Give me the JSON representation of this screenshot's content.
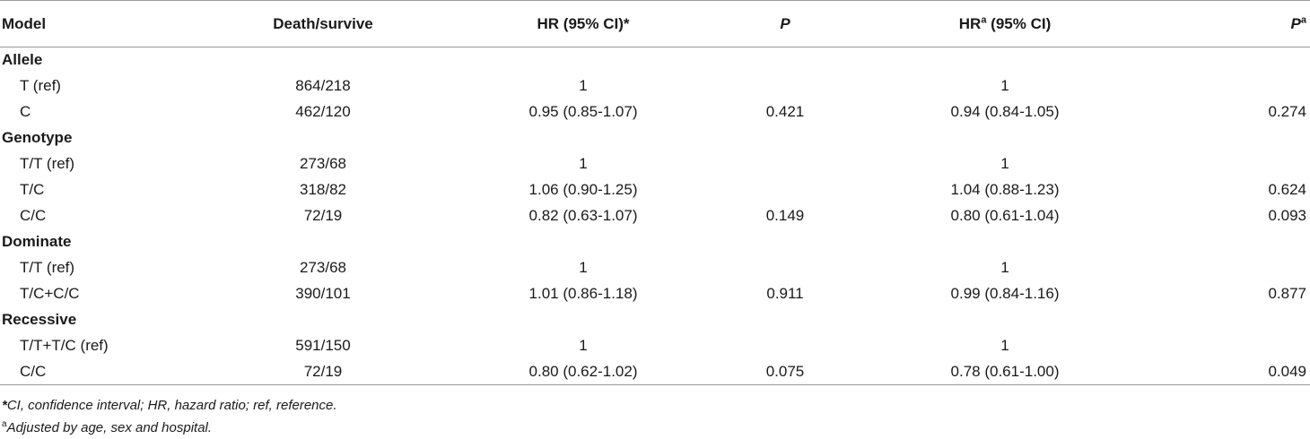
{
  "headers": {
    "model": "Model",
    "death_survive": "Death/survive",
    "hr1": "HR (95% CI)*",
    "p1": "P",
    "hr2_base": "HR",
    "hr2_sup": "a",
    "hr2_rest": " (95% CI)",
    "p2_base": "P",
    "p2_sup": "a"
  },
  "groups": [
    {
      "label": "Allele",
      "rows": [
        {
          "model": "T (ref)",
          "ds": "864/218",
          "hr1": "1",
          "p1": "",
          "hr2": "1",
          "p2": ""
        },
        {
          "model": "C",
          "ds": "462/120",
          "hr1": "0.95 (0.85-1.07)",
          "p1": "0.421",
          "hr2": "0.94 (0.84-1.05)",
          "p2": "0.274"
        }
      ]
    },
    {
      "label": "Genotype",
      "rows": [
        {
          "model": "T/T (ref)",
          "ds": "273/68",
          "hr1": "1",
          "p1": "",
          "hr2": "1",
          "p2": ""
        },
        {
          "model": "T/C",
          "ds": "318/82",
          "hr1": "1.06 (0.90-1.25)",
          "p1": "",
          "hr2": "1.04 (0.88-1.23)",
          "p2": "0.624"
        },
        {
          "model": "C/C",
          "ds": "72/19",
          "hr1": "0.82 (0.63-1.07)",
          "p1": "0.149",
          "hr2": "0.80 (0.61-1.04)",
          "p2": "0.093"
        }
      ]
    },
    {
      "label": "Dominate",
      "rows": [
        {
          "model": "T/T (ref)",
          "ds": "273/68",
          "hr1": "1",
          "p1": "",
          "hr2": "1",
          "p2": ""
        },
        {
          "model": "T/C+C/C",
          "ds": "390/101",
          "hr1": "1.01 (0.86-1.18)",
          "p1": "0.911",
          "hr2": "0.99 (0.84-1.16)",
          "p2": "0.877"
        }
      ]
    },
    {
      "label": "Recessive",
      "rows": [
        {
          "model": "T/T+T/C (ref)",
          "ds": "591/150",
          "hr1": "1",
          "p1": "",
          "hr2": "1",
          "p2": ""
        },
        {
          "model": "C/C",
          "ds": "72/19",
          "hr1": "0.80 (0.62-1.02)",
          "p1": "0.075",
          "hr2": "0.78 (0.61-1.00)",
          "p2": "0.049"
        }
      ]
    }
  ],
  "footnotes": {
    "fn1_marker": "*",
    "fn1_text": "CI, confidence interval; HR, hazard ratio; ref, reference.",
    "fn2_marker": "a",
    "fn2_text": "Adjusted by age, sex and hospital."
  }
}
